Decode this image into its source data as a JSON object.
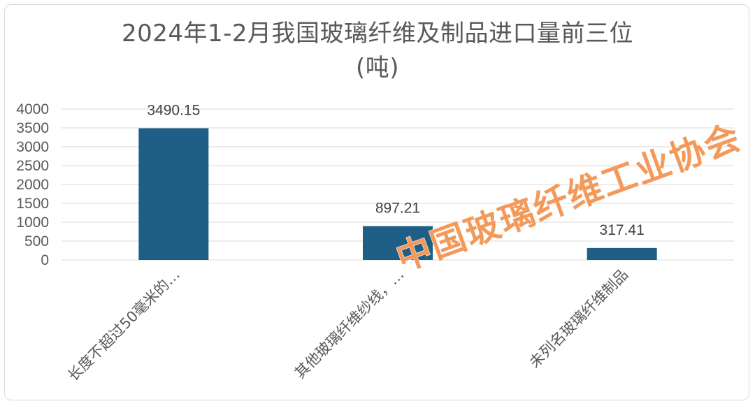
{
  "chart_data": {
    "type": "bar",
    "title_line_1": "2024年1-2月我国玻璃纤维及制品进口量前三位",
    "title_line_2": "(吨)",
    "categories": [
      "长度不超过50毫米的…",
      "其他玻璃纤维纱线，…",
      "未列名玻璃纤维制品"
    ],
    "values": [
      3490.15,
      897.21,
      317.41
    ],
    "data_labels": [
      "3490.15",
      "897.21",
      "317.41"
    ],
    "y_ticks": [
      "0",
      "500",
      "1000",
      "1500",
      "2000",
      "2500",
      "3000",
      "3500",
      "4000"
    ],
    "ylim": [
      0,
      4000
    ],
    "grid": true,
    "legend": "none",
    "bar_color": "#1f5f86"
  },
  "watermark": {
    "text": "中国玻璃纤维工业协会",
    "color": "#f39a5a"
  },
  "colors": {
    "gridline": "#d9d9d9",
    "text": "#595959",
    "frame": "#d9d9d9"
  }
}
